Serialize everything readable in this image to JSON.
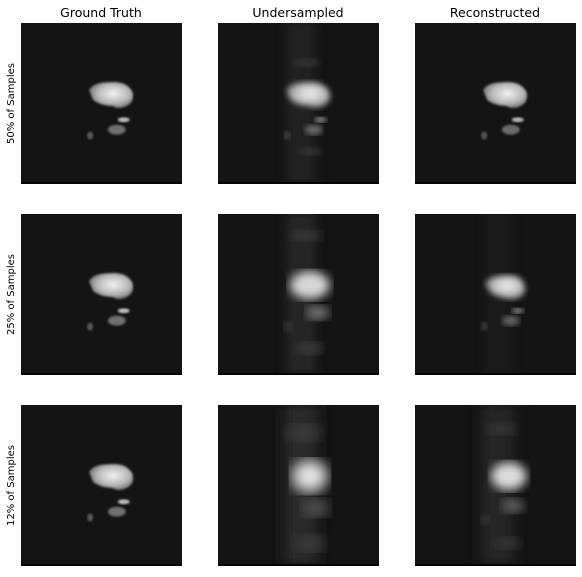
{
  "columns": [
    "Ground Truth",
    "Undersampled",
    "Reconstructed"
  ],
  "rows": [
    "50% of Samples",
    "25% of Samples",
    "12% of Samples"
  ]
}
